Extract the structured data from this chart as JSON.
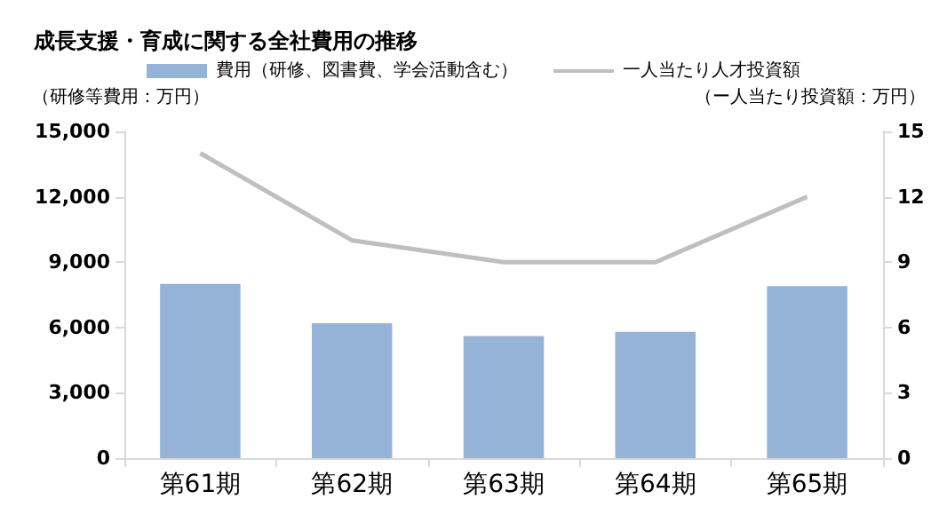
{
  "chart_data": {
    "type": "bar",
    "title": "成長支援・育成に関する全社費用の推移",
    "categories": [
      "第61期",
      "第62期",
      "第63期",
      "第64期",
      "第65期"
    ],
    "series": [
      {
        "name": "費用（研修、図書費、学会活動含む）",
        "color": "#95b3d7",
        "values": [
          8000,
          6200,
          5600,
          5800,
          7900
        ]
      },
      {
        "name": "一人当たり人才投資額",
        "type": "line",
        "axis": "y2",
        "color": "#bfbfbf",
        "values": [
          14,
          10,
          9,
          9,
          12
        ]
      }
    ],
    "ylabel": "（研修等費用：万円）",
    "y2label": "（ー人当たり投資額：万円）",
    "ylim": [
      0,
      15000
    ],
    "yticks": [
      0,
      {
        "value": 3000,
        "label": "3,000"
      },
      {
        "value": 6000,
        "label": "6,000"
      },
      {
        "value": 9000,
        "label": "9,000"
      },
      {
        "value": 12000,
        "label": "12,000"
      },
      {
        "value": 15000,
        "label": "15,000"
      }
    ],
    "y2lim": [
      0,
      15
    ],
    "y2ticks": [
      0,
      3,
      6,
      9,
      12,
      15
    ],
    "grid": false,
    "legend": "top",
    "marker": "none"
  }
}
